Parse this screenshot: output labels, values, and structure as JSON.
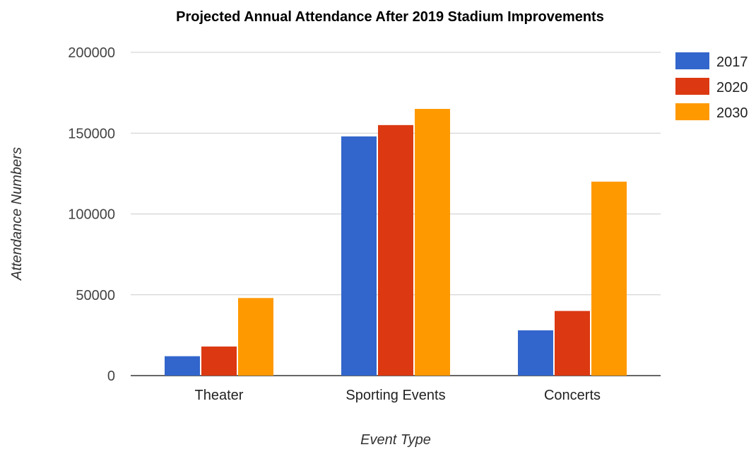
{
  "chart_data": {
    "type": "bar",
    "title": "Projected Annual Attendance After 2019 Stadium Improvements",
    "xlabel": "Event Type",
    "ylabel": "Attendance Numbers",
    "categories": [
      "Theater",
      "Sporting Events",
      "Concerts"
    ],
    "series": [
      {
        "name": "2017",
        "color": "#3366cc",
        "values": [
          12000,
          148000,
          28000
        ]
      },
      {
        "name": "2020",
        "color": "#dc3912",
        "values": [
          18000,
          155000,
          40000
        ]
      },
      {
        "name": "2030",
        "color": "#ff9900",
        "values": [
          48000,
          165000,
          120000
        ]
      }
    ],
    "ylim": [
      0,
      200000
    ],
    "yticks": [
      "0",
      "50000",
      "100000",
      "150000",
      "200000"
    ],
    "grid": true,
    "legend_position": "right"
  }
}
